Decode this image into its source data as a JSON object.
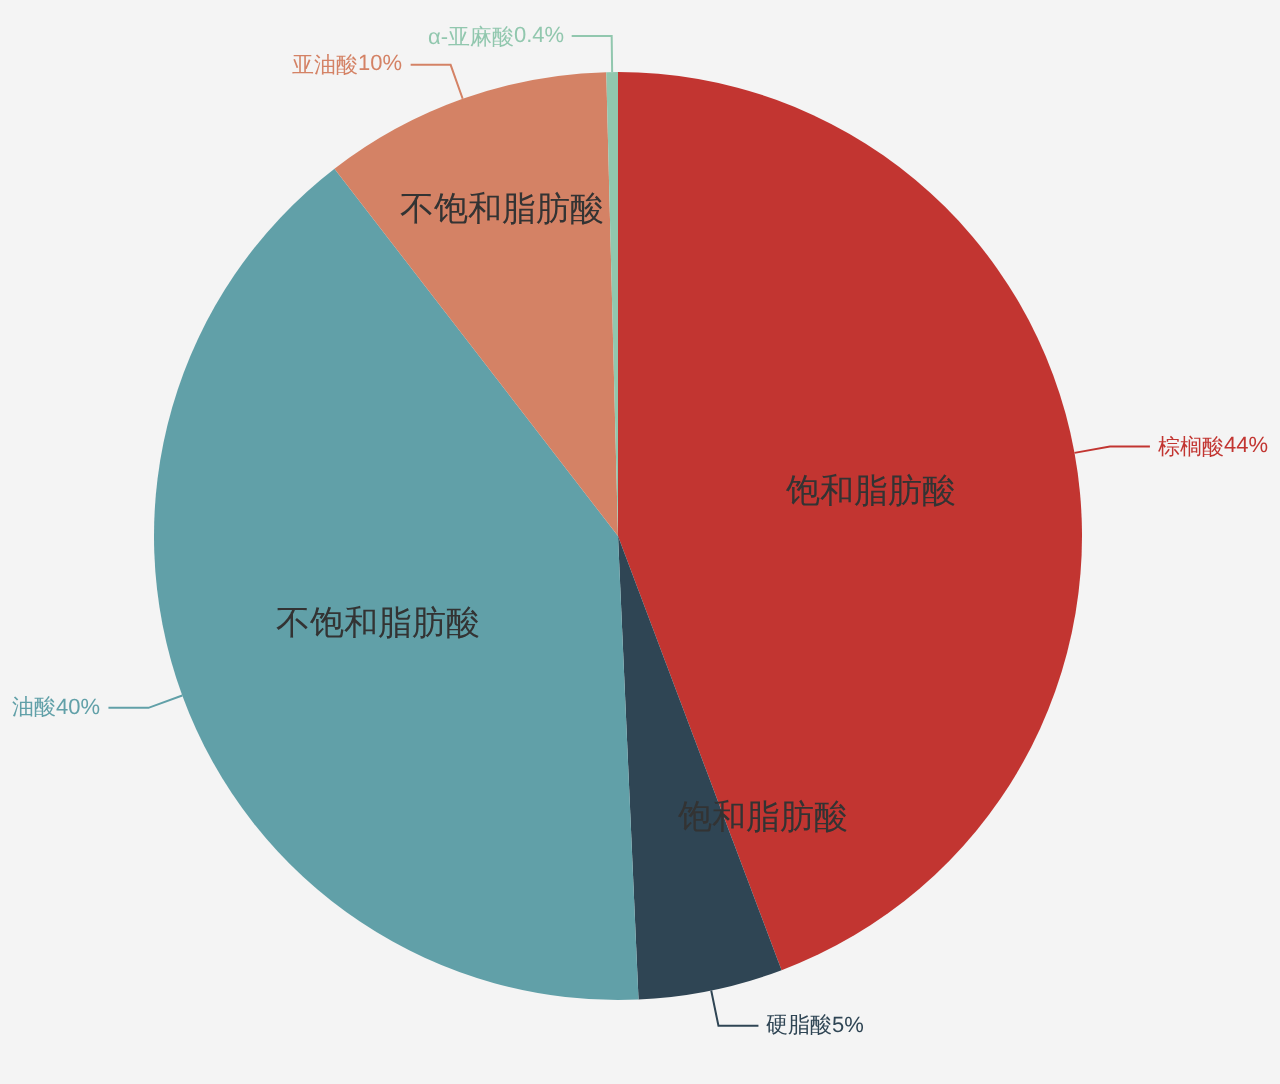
{
  "chart_data": {
    "type": "pie",
    "categories": [
      "棕榈酸",
      "硬脂酸",
      "油酸",
      "亚油酸",
      "α-亚麻酸"
    ],
    "values": [
      44,
      5,
      40,
      10,
      0.4
    ],
    "colors": [
      "#c23531",
      "#2f4554",
      "#61a0a8",
      "#d48265",
      "#91c7ae"
    ],
    "value_labels": [
      "44%",
      "5%",
      "40%",
      "10%",
      "0.4%"
    ],
    "annotations": [
      {
        "text": "饱和脂肪酸",
        "x": "棕榈酸"
      },
      {
        "text": "饱和脂肪酸",
        "x": "硬脂酸"
      },
      {
        "text": "不饱和脂肪酸",
        "x": "油酸"
      },
      {
        "text": "不饱和脂肪酸",
        "x": "亚油酸"
      }
    ]
  }
}
